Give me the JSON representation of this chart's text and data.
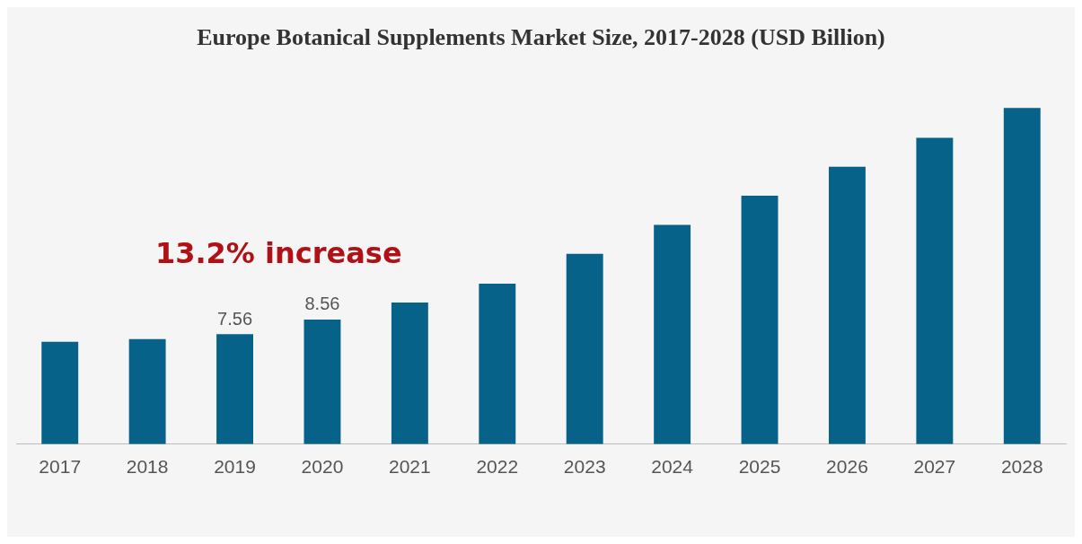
{
  "chart_data": {
    "type": "bar",
    "title": "Europe Botanical Supplements Market Size, 2017-2028 (USD Billion)",
    "categories": [
      "2017",
      "2018",
      "2019",
      "2020",
      "2021",
      "2022",
      "2023",
      "2024",
      "2025",
      "2026",
      "2027",
      "2028"
    ],
    "values": [
      7.03,
      7.21,
      7.56,
      8.56,
      9.73,
      11.02,
      13.07,
      15.06,
      17.06,
      19.05,
      21.04,
      23.09
    ],
    "value_labels": [
      null,
      null,
      "7.56",
      "8.56",
      null,
      null,
      null,
      null,
      null,
      null,
      null,
      null
    ],
    "color": "#07628a",
    "annotations": [
      "13.2% increase"
    ],
    "grid": false
  }
}
